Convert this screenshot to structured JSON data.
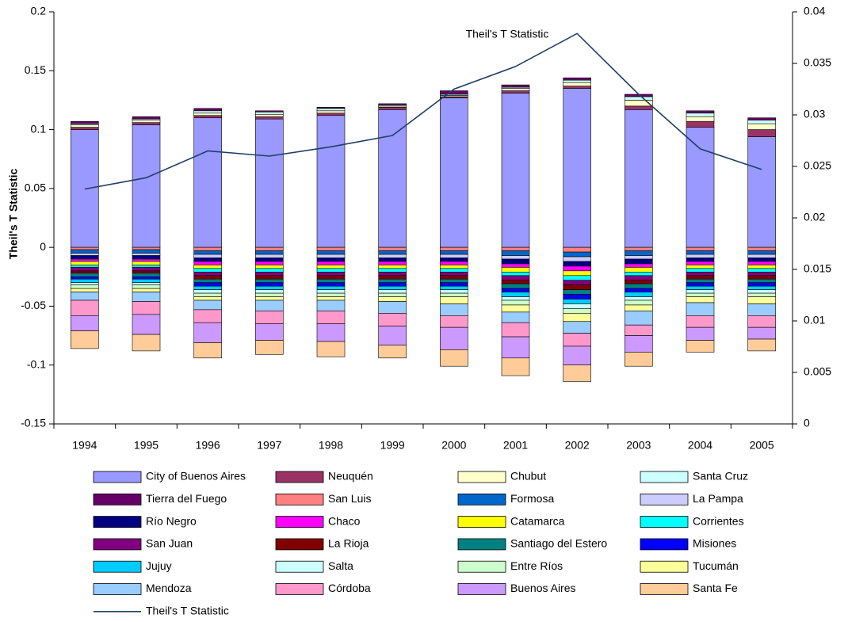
{
  "chart_data": {
    "type": "bar",
    "stacked": true,
    "y_label": "Theil's T Statistic",
    "annotation": "Theil's T Statistic",
    "categories": [
      "1994",
      "1995",
      "1996",
      "1997",
      "1998",
      "1999",
      "2000",
      "2001",
      "2002",
      "2003",
      "2004",
      "2005"
    ],
    "ylim": [
      -0.15,
      0.2
    ],
    "yticks": [
      -0.15,
      -0.1,
      -0.05,
      0,
      0.05,
      0.1,
      0.15,
      0.2
    ],
    "y2lim": [
      0,
      0.04
    ],
    "y2ticks": [
      0,
      0.005,
      0.01,
      0.015,
      0.02,
      0.025,
      0.03,
      0.035,
      0.04
    ],
    "grid": false,
    "series": [
      {
        "name": "City of Buenos Aires",
        "color": "#9999ff",
        "values": [
          0.1,
          0.104,
          0.11,
          0.109,
          0.112,
          0.117,
          0.127,
          0.131,
          0.135,
          0.117,
          0.102,
          0.094
        ]
      },
      {
        "name": "Neuquén",
        "color": "#993366",
        "values": [
          0.002,
          0.002,
          0.002,
          0.002,
          0.002,
          0.002,
          0.001,
          0.002,
          0.002,
          0.003,
          0.005,
          0.006
        ]
      },
      {
        "name": "Chubut",
        "color": "#ffffcc",
        "values": [
          0.002,
          0.002,
          0.002,
          0.002,
          0.002,
          0.001,
          0.001,
          0.002,
          0.003,
          0.005,
          0.004,
          0.005
        ]
      },
      {
        "name": "Santa Cruz",
        "color": "#ccffff",
        "values": [
          0.001,
          0.001,
          0.002,
          0.002,
          0.002,
          0.001,
          0.001,
          0.001,
          0.002,
          0.003,
          0.003,
          0.003
        ]
      },
      {
        "name": "Tierra del Fuego",
        "color": "#660066",
        "values": [
          0.002,
          0.002,
          0.002,
          0.001,
          0.001,
          0.001,
          0.003,
          0.002,
          0.002,
          0.002,
          0.002,
          0.002
        ]
      },
      {
        "name": "San Luis",
        "color": "#ff8080",
        "values": [
          -0.002,
          -0.002,
          -0.003,
          -0.003,
          -0.003,
          -0.003,
          -0.003,
          -0.003,
          -0.004,
          -0.003,
          -0.003,
          -0.003
        ]
      },
      {
        "name": "Formosa",
        "color": "#0066cc",
        "values": [
          -0.003,
          -0.003,
          -0.003,
          -0.003,
          -0.003,
          -0.003,
          -0.003,
          -0.004,
          -0.004,
          -0.004,
          -0.003,
          -0.003
        ]
      },
      {
        "name": "La Pampa",
        "color": "#ccccff",
        "values": [
          -0.002,
          -0.002,
          -0.003,
          -0.003,
          -0.003,
          -0.003,
          -0.003,
          -0.003,
          -0.004,
          -0.003,
          -0.003,
          -0.003
        ]
      },
      {
        "name": "Río Negro",
        "color": "#000080",
        "values": [
          -0.003,
          -0.003,
          -0.003,
          -0.003,
          -0.003,
          -0.003,
          -0.003,
          -0.004,
          -0.004,
          -0.004,
          -0.003,
          -0.003
        ]
      },
      {
        "name": "Chaco",
        "color": "#ff00ff",
        "values": [
          -0.002,
          -0.002,
          -0.003,
          -0.003,
          -0.003,
          -0.003,
          -0.003,
          -0.003,
          -0.004,
          -0.003,
          -0.003,
          -0.003
        ]
      },
      {
        "name": "Catamarca",
        "color": "#ffff00",
        "values": [
          -0.003,
          -0.003,
          -0.003,
          -0.003,
          -0.003,
          -0.003,
          -0.003,
          -0.004,
          -0.004,
          -0.004,
          -0.003,
          -0.003
        ]
      },
      {
        "name": "Corrientes",
        "color": "#00ffff",
        "values": [
          -0.002,
          -0.002,
          -0.003,
          -0.003,
          -0.003,
          -0.003,
          -0.003,
          -0.003,
          -0.004,
          -0.003,
          -0.003,
          -0.003
        ]
      },
      {
        "name": "San Juan",
        "color": "#800080",
        "values": [
          -0.003,
          -0.003,
          -0.003,
          -0.003,
          -0.003,
          -0.003,
          -0.003,
          -0.004,
          -0.004,
          -0.004,
          -0.003,
          -0.003
        ]
      },
      {
        "name": "La Rioja",
        "color": "#800000",
        "values": [
          -0.002,
          -0.002,
          -0.003,
          -0.003,
          -0.003,
          -0.003,
          -0.003,
          -0.003,
          -0.004,
          -0.003,
          -0.003,
          -0.003
        ]
      },
      {
        "name": "Santiago del Estero",
        "color": "#008080",
        "values": [
          -0.003,
          -0.003,
          -0.003,
          -0.003,
          -0.003,
          -0.003,
          -0.003,
          -0.004,
          -0.004,
          -0.004,
          -0.003,
          -0.003
        ]
      },
      {
        "name": "Misiones",
        "color": "#0000ff",
        "values": [
          -0.002,
          -0.002,
          -0.003,
          -0.003,
          -0.003,
          -0.003,
          -0.003,
          -0.003,
          -0.004,
          -0.003,
          -0.003,
          -0.003
        ]
      },
      {
        "name": "Jujuy",
        "color": "#00ccff",
        "values": [
          -0.003,
          -0.003,
          -0.003,
          -0.003,
          -0.003,
          -0.003,
          -0.003,
          -0.004,
          -0.004,
          -0.004,
          -0.003,
          -0.003
        ]
      },
      {
        "name": "Salta",
        "color": "#ccffff",
        "values": [
          -0.002,
          -0.002,
          -0.003,
          -0.003,
          -0.003,
          -0.003,
          -0.003,
          -0.003,
          -0.004,
          -0.003,
          -0.003,
          -0.003
        ]
      },
      {
        "name": "Entre Ríos",
        "color": "#ccffcc",
        "values": [
          -0.003,
          -0.003,
          -0.003,
          -0.003,
          -0.003,
          -0.003,
          -0.003,
          -0.004,
          -0.004,
          -0.004,
          -0.003,
          -0.003
        ]
      },
      {
        "name": "Tucumán",
        "color": "#ffff99",
        "values": [
          -0.003,
          -0.003,
          -0.003,
          -0.003,
          -0.003,
          -0.004,
          -0.006,
          -0.006,
          -0.007,
          -0.005,
          -0.005,
          -0.006
        ]
      },
      {
        "name": "Mendoza",
        "color": "#99ccff",
        "values": [
          -0.007,
          -0.008,
          -0.008,
          -0.009,
          -0.009,
          -0.01,
          -0.01,
          -0.009,
          -0.01,
          -0.012,
          -0.011,
          -0.01
        ]
      },
      {
        "name": "Córdoba",
        "color": "#ff99cc",
        "values": [
          -0.013,
          -0.011,
          -0.011,
          -0.011,
          -0.011,
          -0.011,
          -0.01,
          -0.012,
          -0.011,
          -0.009,
          -0.01,
          -0.01
        ]
      },
      {
        "name": "Buenos Aires",
        "color": "#cc99ff",
        "values": [
          -0.013,
          -0.017,
          -0.017,
          -0.014,
          -0.015,
          -0.016,
          -0.019,
          -0.018,
          -0.016,
          -0.014,
          -0.011,
          -0.01
        ]
      },
      {
        "name": "Santa Fe",
        "color": "#ffcc99",
        "values": [
          -0.015,
          -0.014,
          -0.013,
          -0.012,
          -0.013,
          -0.011,
          -0.014,
          -0.015,
          -0.014,
          -0.012,
          -0.01,
          -0.01
        ]
      },
      {
        "name": "Theil's T Statistic",
        "color": "#1f3f66",
        "type": "line",
        "axis": "y2",
        "values": [
          0.0228,
          0.0239,
          0.0265,
          0.026,
          0.0269,
          0.028,
          0.0325,
          0.0347,
          0.0379,
          0.032,
          0.0267,
          0.0247
        ]
      }
    ]
  }
}
